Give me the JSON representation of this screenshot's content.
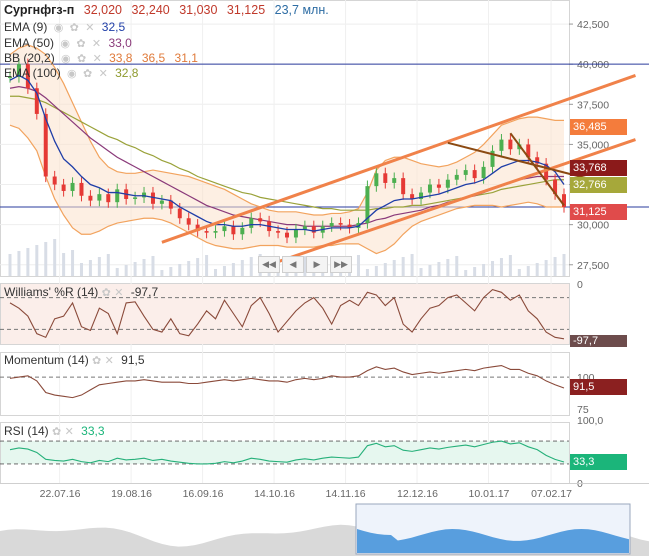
{
  "header": {
    "symbol": "Сургнфгз-п",
    "open": "32,020",
    "high": "32,240",
    "low": "31,030",
    "close": "31,125",
    "volume": "23,7 млн."
  },
  "indicators": [
    {
      "name": "EMA (9)",
      "value": "32,5",
      "color": "#1f3ea8"
    },
    {
      "name": "EMA (50)",
      "value": "33,0",
      "color": "#8a3a7a"
    },
    {
      "name": "BB (20,2)",
      "value": "33,8",
      "value2": "36,5",
      "value3": "31,1",
      "color": "#e07a3a"
    },
    {
      "name": "EMA (100)",
      "value": "32,8",
      "color": "#9aa23a"
    }
  ],
  "colors": {
    "candle_up": "#4caf50",
    "candle_down": "#e53935",
    "ema9": "#1f3ea8",
    "ema50": "#8a3a7a",
    "ema100": "#9aa23a",
    "bb": "#f2a35e",
    "trend": "#f0824a",
    "channel_down": "#8b4a12",
    "rsi": "#26b07a",
    "osc": "#8a4a3a"
  },
  "nav": {
    "first": "◀◀",
    "prev": "◀",
    "next": "▶",
    "last": "▶▶"
  },
  "price_tags": [
    {
      "label": "36,485",
      "color": "#f47c3c"
    },
    {
      "label": "33,768",
      "color": "#8b1a1a"
    },
    {
      "label": "32,766",
      "color": "#a6a83a"
    },
    {
      "label": "31,125",
      "color": "#e04b4b"
    }
  ],
  "panes": {
    "williams": {
      "title": "Williams' %R (14)",
      "value": "-97,7",
      "tag": "-97,7",
      "tag_color": "#6d4c4c"
    },
    "momentum": {
      "title": "Momentum (14)",
      "value": "91,5",
      "tag": "91,5",
      "tag_color": "#8b2020"
    },
    "rsi": {
      "title": "RSI (14)",
      "value": "33,3",
      "tag": "33,3",
      "tag_color": "#1bb57a"
    }
  },
  "chart_data": [
    {
      "type": "candlestick",
      "title": "Сургнфгз-п",
      "x_ticks": [
        "22.07.16",
        "19.08.16",
        "16.09.16",
        "14.10.16",
        "14.11.16",
        "12.12.16",
        "10.01.17",
        "07.02.17"
      ],
      "y_ticks": [
        "42,500",
        "40,000",
        "37,500",
        "35,000",
        "32,500",
        "30,000",
        "27,500"
      ],
      "ylim": [
        26.8,
        44.0
      ],
      "horizontal_levels": [
        40.0,
        31.1
      ],
      "series": [
        {
          "name": "Close",
          "values": [
            39.2,
            40.0,
            38.5,
            36.9,
            33.0,
            32.5,
            32.1,
            32.6,
            31.8,
            31.5,
            31.9,
            31.4,
            32.2,
            31.6,
            31.7,
            32.0,
            31.3,
            31.5,
            31.0,
            30.4,
            30.0,
            29.6,
            29.5,
            29.6,
            29.9,
            29.4,
            29.8,
            30.4,
            30.2,
            29.6,
            29.5,
            29.2,
            29.7,
            29.9,
            29.5,
            29.9,
            30.1,
            30.0,
            29.8,
            30.1,
            32.4,
            33.2,
            32.6,
            32.9,
            31.9,
            31.6,
            32.0,
            32.5,
            32.3,
            32.8,
            33.1,
            33.4,
            32.9,
            33.6,
            34.6,
            35.3,
            34.7,
            35.0,
            34.2,
            33.8,
            32.8,
            31.9,
            31.1
          ]
        },
        {
          "name": "EMA (9)",
          "values": [
            39.0,
            39.3,
            39.0,
            38.2,
            36.6,
            35.2,
            34.1,
            33.6,
            33.0,
            32.5,
            32.3,
            32.0,
            32.0,
            31.9,
            31.8,
            31.8,
            31.7,
            31.6,
            31.5,
            31.1,
            30.8,
            30.5,
            30.2,
            30.0,
            30.0,
            29.9,
            29.9,
            30.0,
            30.0,
            29.9,
            29.8,
            29.7,
            29.7,
            29.7,
            29.6,
            29.7,
            29.8,
            29.8,
            29.8,
            29.9,
            30.4,
            30.9,
            31.2,
            31.5,
            31.6,
            31.6,
            31.7,
            31.8,
            31.9,
            32.1,
            32.3,
            32.5,
            32.6,
            32.8,
            33.2,
            33.6,
            33.8,
            34.0,
            34.0,
            33.9,
            33.7,
            33.3,
            32.5
          ]
        },
        {
          "name": "EMA (50)",
          "values": [
            38.5,
            38.6,
            38.5,
            38.3,
            37.9,
            37.4,
            36.9,
            36.4,
            35.9,
            35.4,
            35.0,
            34.6,
            34.2,
            33.9,
            33.6,
            33.3,
            33.0,
            32.7,
            32.4,
            32.1,
            31.8,
            31.5,
            31.2,
            31.0,
            30.8,
            30.6,
            30.5,
            30.4,
            30.3,
            30.2,
            30.1,
            30.0,
            30.0,
            29.9,
            29.9,
            29.9,
            29.9,
            29.9,
            29.9,
            30.0,
            30.1,
            30.3,
            30.4,
            30.6,
            30.7,
            30.8,
            30.9,
            31.1,
            31.2,
            31.4,
            31.5,
            31.7,
            31.8,
            32.0,
            32.2,
            32.4,
            32.6,
            32.8,
            32.9,
            33.0,
            33.0,
            33.0,
            33.0
          ]
        },
        {
          "name": "EMA (100)",
          "values": [
            38.0,
            38.0,
            37.9,
            37.8,
            37.6,
            37.3,
            37.0,
            36.7,
            36.4,
            36.1,
            35.8,
            35.5,
            35.3,
            35.0,
            34.8,
            34.5,
            34.3,
            34.0,
            33.8,
            33.5,
            33.3,
            33.0,
            32.8,
            32.6,
            32.4,
            32.2,
            32.0,
            31.9,
            31.7,
            31.6,
            31.5,
            31.4,
            31.3,
            31.2,
            31.1,
            31.0,
            31.0,
            30.9,
            30.9,
            30.9,
            30.9,
            31.0,
            31.0,
            31.1,
            31.1,
            31.2,
            31.2,
            31.3,
            31.4,
            31.5,
            31.6,
            31.7,
            31.8,
            31.9,
            32.0,
            32.2,
            32.3,
            32.4,
            32.5,
            32.6,
            32.7,
            32.8,
            32.8
          ]
        },
        {
          "name": "BB (20,2) upper",
          "values": [
            40.6,
            41.0,
            41.2,
            41.0,
            40.6,
            39.8,
            38.8,
            37.6,
            36.4,
            35.2,
            34.2,
            33.6,
            33.3,
            33.2,
            33.2,
            33.3,
            33.4,
            33.3,
            33.2,
            33.1,
            33.0,
            32.8,
            32.6,
            32.4,
            32.2,
            31.9,
            31.6,
            31.3,
            31.1,
            30.9,
            30.8,
            30.8,
            30.8,
            30.7,
            30.6,
            30.6,
            30.7,
            30.7,
            30.8,
            31.0,
            32.0,
            33.4,
            34.0,
            34.2,
            34.2,
            34.0,
            33.8,
            33.7,
            33.6,
            33.7,
            33.9,
            34.2,
            34.5,
            35.0,
            35.6,
            36.2,
            36.4,
            36.6,
            36.7,
            36.7,
            36.6,
            36.5,
            36.5
          ]
        },
        {
          "name": "BB (20,2) lower",
          "values": [
            36.2,
            36.0,
            35.4,
            34.6,
            33.0,
            31.6,
            30.6,
            29.8,
            29.4,
            29.4,
            29.6,
            29.9,
            30.1,
            30.2,
            30.3,
            30.4,
            30.4,
            30.3,
            30.1,
            29.8,
            29.5,
            29.2,
            28.9,
            28.7,
            28.6,
            28.5,
            28.5,
            28.6,
            28.7,
            28.7,
            28.7,
            28.6,
            28.6,
            28.6,
            28.6,
            28.7,
            28.7,
            28.8,
            28.8,
            28.8,
            28.5,
            28.2,
            28.4,
            28.8,
            29.4,
            29.9,
            30.2,
            30.4,
            30.6,
            30.8,
            31.0,
            31.1,
            31.2,
            31.2,
            31.2,
            31.1,
            31.2,
            31.3,
            31.4,
            31.3,
            31.1,
            31.1,
            31.1
          ]
        }
      ],
      "annotations": {
        "price_tags": [
          "36,485",
          "33,768",
          "32,766",
          "31,125"
        ]
      }
    },
    {
      "type": "line",
      "title": "Williams' %R (14)",
      "y_ticks": [
        "0"
      ],
      "ylim": [
        -100,
        0
      ],
      "levels": [
        -20,
        -80
      ],
      "series": [
        {
          "name": "Williams' %R (14)",
          "values": [
            -30,
            -40,
            -55,
            -88,
            -95,
            -60,
            -55,
            -30,
            -75,
            -82,
            -40,
            -50,
            -88,
            -30,
            -28,
            -55,
            -80,
            -85,
            -60,
            -88,
            -92,
            -70,
            -45,
            -60,
            -25,
            -50,
            -75,
            -35,
            -20,
            -50,
            -85,
            -65,
            -45,
            -30,
            -20,
            -40,
            -70,
            -35,
            -25,
            -35,
            -10,
            -15,
            -35,
            -20,
            -70,
            -85,
            -60,
            -40,
            -35,
            -20,
            -15,
            -30,
            -45,
            -20,
            -5,
            -10,
            -25,
            -15,
            -45,
            -60,
            -85,
            -95,
            -97.7
          ]
        }
      ]
    },
    {
      "type": "line",
      "title": "Momentum (14)",
      "y_ticks": [
        "100",
        "75"
      ],
      "ylim": [
        72,
        118
      ],
      "levels": [
        100
      ],
      "series": [
        {
          "name": "Momentum (14)",
          "values": [
            99,
            100,
            101,
            97,
            88,
            86,
            85,
            84,
            86,
            90,
            94,
            95,
            96,
            97,
            97,
            98,
            97,
            96,
            96,
            96,
            95,
            95,
            96,
            97,
            98,
            97,
            98,
            99,
            98,
            97,
            97,
            96,
            98,
            99,
            98,
            99,
            101,
            100,
            100,
            101,
            105,
            108,
            106,
            107,
            104,
            102,
            103,
            104,
            103,
            104,
            105,
            106,
            105,
            107,
            108,
            109,
            106,
            106,
            103,
            101,
            97,
            94,
            91.5
          ]
        }
      ]
    },
    {
      "type": "line",
      "title": "RSI (14)",
      "y_ticks": [
        "100,0",
        "0"
      ],
      "ylim": [
        0,
        100
      ],
      "levels": [
        70,
        30
      ],
      "series": [
        {
          "name": "RSI (14)",
          "values": [
            55,
            58,
            56,
            50,
            38,
            36,
            35,
            38,
            34,
            32,
            36,
            34,
            40,
            37,
            38,
            40,
            36,
            38,
            35,
            33,
            31,
            30,
            30,
            31,
            34,
            32,
            35,
            40,
            38,
            35,
            34,
            33,
            37,
            39,
            37,
            40,
            42,
            41,
            40,
            42,
            62,
            66,
            60,
            62,
            54,
            52,
            55,
            58,
            56,
            59,
            61,
            63,
            60,
            64,
            68,
            70,
            65,
            67,
            60,
            55,
            45,
            38,
            33.3
          ]
        }
      ]
    }
  ]
}
